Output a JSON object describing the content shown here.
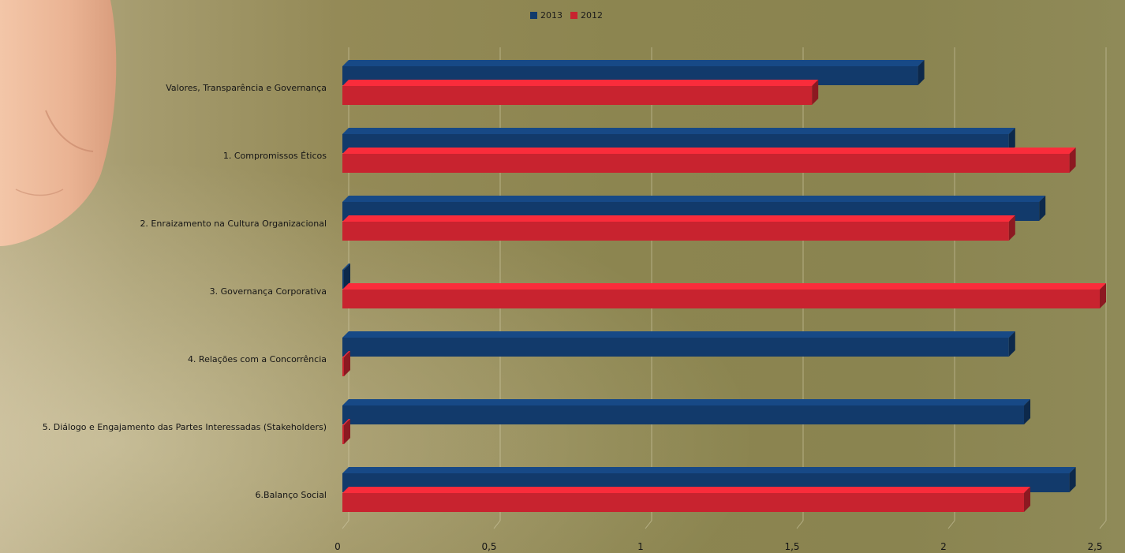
{
  "chart_data": {
    "type": "bar",
    "orientation": "horizontal",
    "categories": [
      "Valores, Transparência e Governança",
      "1. Compromissos Éticos",
      "2. Enraizamento na Cultura Organizacional",
      "3. Governança Corporativa",
      "4. Relações com a Concorrência",
      "5. Diálogo e Engajamento das Partes Interessadas (Stakeholders)",
      "6.Balanço Social"
    ],
    "series": [
      {
        "name": "2013",
        "color": "#123a6b",
        "values": [
          1.9,
          2.2,
          2.3,
          0,
          2.2,
          2.25,
          2.4
        ]
      },
      {
        "name": "2012",
        "color": "#c8232f",
        "values": [
          1.55,
          2.4,
          2.2,
          2.5,
          0,
          0,
          2.25
        ]
      }
    ],
    "xlim": [
      0,
      2.5
    ],
    "xticks": [
      "0",
      "0,5",
      "1",
      "1,5",
      "2",
      "2,5"
    ],
    "grid": true,
    "legend_position": "top-center"
  }
}
